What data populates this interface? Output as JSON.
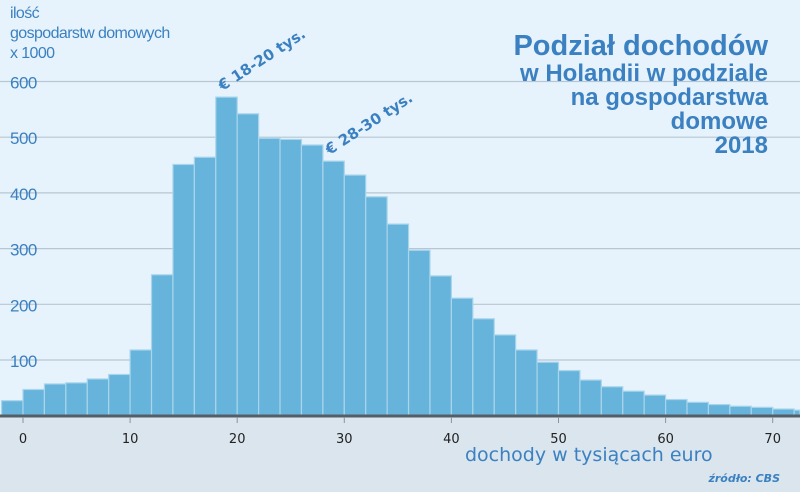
{
  "chart_data": {
    "type": "bar",
    "title": "Podział dochodów",
    "subtitle_lines": [
      "w Holandii w podziale",
      "na gospodarstwa",
      "domowe",
      "2018"
    ],
    "ylabel_lines": [
      "ilość",
      "gospodarstw domowych",
      "x 1000"
    ],
    "xlabel": "dochody w tysiącach euro",
    "source": "źródło: CBS",
    "bin_width": 2,
    "bin_starts": [
      -2,
      0,
      2,
      4,
      6,
      8,
      10,
      12,
      14,
      16,
      18,
      20,
      22,
      24,
      26,
      28,
      30,
      32,
      34,
      36,
      38,
      40,
      42,
      44,
      46,
      48,
      50,
      52,
      54,
      56,
      58,
      60,
      62,
      64,
      66,
      68,
      70,
      72
    ],
    "values": [
      27,
      47,
      57,
      59,
      66,
      74,
      118,
      253,
      451,
      464,
      572,
      542,
      498,
      496,
      486,
      457,
      432,
      393,
      344,
      297,
      251,
      211,
      174,
      145,
      118,
      96,
      81,
      64,
      52,
      44,
      37,
      29,
      24,
      20,
      17,
      15,
      12,
      10
    ],
    "xlim": [
      -2,
      72.5
    ],
    "ylim": [
      0,
      600
    ],
    "xticks": [
      "0",
      "10",
      "20",
      "30",
      "40",
      "50",
      "60",
      "70"
    ],
    "yticks": [
      "100",
      "200",
      "300",
      "400",
      "500",
      "600"
    ],
    "grid": "horizontal",
    "annotations": [
      {
        "text": "€ 18-20 tys.",
        "x": 19
      },
      {
        "text": "€ 28-30 tys.",
        "x": 29
      }
    ],
    "colors": {
      "bar": "#66b4db",
      "bar_edge": "#a9d5ec",
      "text": "#3b80c0",
      "background": "#e6f3fc",
      "axis_band": "#dae5ee"
    }
  }
}
